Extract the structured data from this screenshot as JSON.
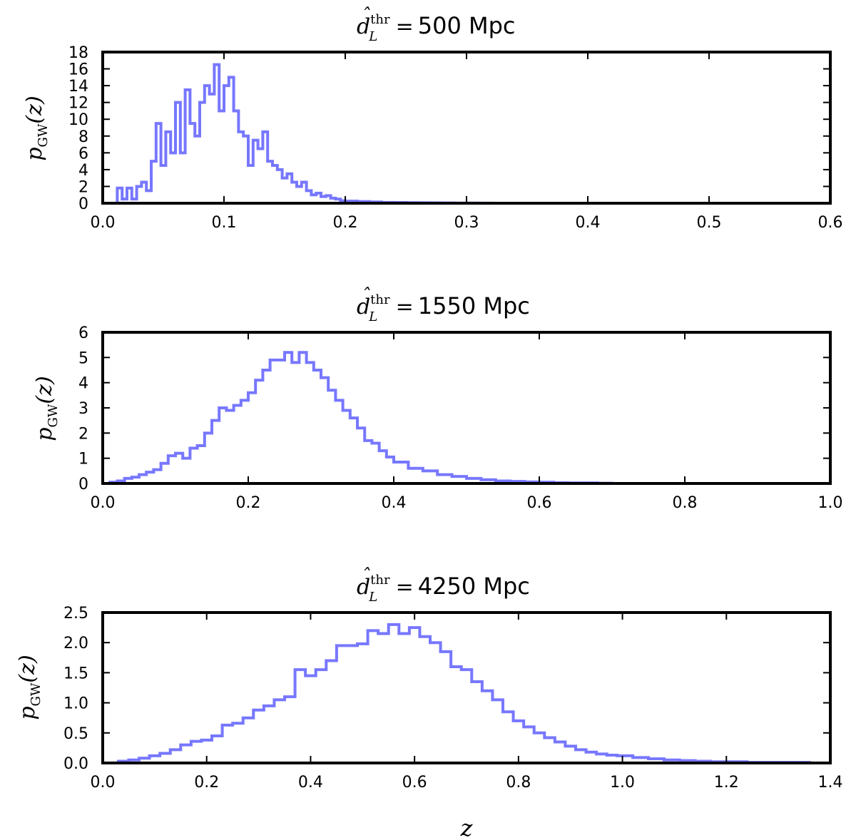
{
  "figure": {
    "xlabel": "z",
    "ylabel_symbol": "p",
    "ylabel_subscript": "GW",
    "ylabel_argument": "(z)",
    "title_symbol": "d",
    "title_subscript": "L",
    "title_superscript": "thr",
    "title_equals": "="
  },
  "chart_data": [
    {
      "type": "line",
      "style": "step histogram",
      "title": "500 Mpc",
      "xlabel": "",
      "ylabel": "p_GW(z)",
      "xlim": [
        0.0,
        0.6
      ],
      "ylim": [
        0,
        18
      ],
      "xticks": [
        0.0,
        0.1,
        0.2,
        0.3,
        0.4,
        0.5,
        0.6
      ],
      "xtick_labels": [
        "0.0",
        "0.1",
        "0.2",
        "0.3",
        "0.4",
        "0.5",
        "0.6"
      ],
      "yticks": [
        0,
        2,
        4,
        6,
        8,
        10,
        12,
        14,
        16,
        18
      ],
      "ytick_labels": [
        "0",
        "2",
        "4",
        "6",
        "8",
        "10",
        "12",
        "14",
        "16",
        "18"
      ],
      "color": "#7777ff",
      "series": [
        {
          "name": "d_L^thr = 500 Mpc",
          "x": [
            0.012,
            0.016,
            0.02,
            0.024,
            0.028,
            0.032,
            0.036,
            0.04,
            0.044,
            0.048,
            0.052,
            0.056,
            0.06,
            0.064,
            0.068,
            0.072,
            0.076,
            0.08,
            0.084,
            0.088,
            0.092,
            0.096,
            0.1,
            0.104,
            0.108,
            0.112,
            0.116,
            0.12,
            0.124,
            0.128,
            0.132,
            0.136,
            0.14,
            0.144,
            0.148,
            0.152,
            0.156,
            0.16,
            0.164,
            0.168,
            0.172,
            0.176,
            0.18,
            0.184,
            0.188,
            0.192,
            0.196,
            0.2,
            0.21,
            0.22,
            0.23,
            0.24,
            0.25,
            0.26,
            0.27,
            0.28,
            0.29,
            0.3,
            0.31,
            0.32
          ],
          "values": [
            1.8,
            0.5,
            1.8,
            0.5,
            2.0,
            2.5,
            1.5,
            5.0,
            9.5,
            4.5,
            8.5,
            6.0,
            12.0,
            6.0,
            13.5,
            9.5,
            8.0,
            12.0,
            14.0,
            13.0,
            16.5,
            11.0,
            14.0,
            15.0,
            11.0,
            8.5,
            8.0,
            4.5,
            7.5,
            6.5,
            8.5,
            5.0,
            4.5,
            4.0,
            3.0,
            3.5,
            2.5,
            2.0,
            2.5,
            1.5,
            1.0,
            1.2,
            0.8,
            0.9,
            0.6,
            0.5,
            0.3,
            0.25,
            0.2,
            0.15,
            0.1,
            0.08,
            0.06,
            0.05,
            0.04,
            0.03,
            0.02,
            0.02,
            0.01,
            0.0
          ]
        }
      ]
    },
    {
      "type": "line",
      "style": "step histogram",
      "title": "1550 Mpc",
      "xlabel": "",
      "ylabel": "p_GW(z)",
      "xlim": [
        0.0,
        1.0
      ],
      "ylim": [
        0,
        6
      ],
      "xticks": [
        0.0,
        0.2,
        0.4,
        0.6,
        0.8,
        1.0
      ],
      "xtick_labels": [
        "0.0",
        "0.2",
        "0.4",
        "0.6",
        "0.8",
        "1.0"
      ],
      "yticks": [
        0,
        1,
        2,
        3,
        4,
        5,
        6
      ],
      "ytick_labels": [
        "0",
        "1",
        "2",
        "3",
        "4",
        "5",
        "6"
      ],
      "color": "#7777ff",
      "series": [
        {
          "name": "d_L^thr = 1550 Mpc",
          "x": [
            0.01,
            0.02,
            0.03,
            0.04,
            0.05,
            0.06,
            0.07,
            0.08,
            0.09,
            0.1,
            0.11,
            0.12,
            0.13,
            0.14,
            0.15,
            0.16,
            0.17,
            0.18,
            0.19,
            0.2,
            0.21,
            0.22,
            0.23,
            0.24,
            0.25,
            0.26,
            0.27,
            0.28,
            0.29,
            0.3,
            0.31,
            0.32,
            0.33,
            0.34,
            0.35,
            0.36,
            0.37,
            0.38,
            0.39,
            0.4,
            0.42,
            0.44,
            0.46,
            0.48,
            0.5,
            0.52,
            0.54,
            0.56,
            0.58,
            0.6,
            0.62,
            0.64,
            0.66,
            0.68,
            0.7
          ],
          "values": [
            0.05,
            0.1,
            0.2,
            0.25,
            0.35,
            0.45,
            0.55,
            0.8,
            1.1,
            1.2,
            1.0,
            1.4,
            1.5,
            2.0,
            2.5,
            3.0,
            2.9,
            3.1,
            3.3,
            3.6,
            4.1,
            4.5,
            4.9,
            4.9,
            5.2,
            4.8,
            5.2,
            4.8,
            4.5,
            4.2,
            3.7,
            3.3,
            2.9,
            2.6,
            2.2,
            1.7,
            1.6,
            1.3,
            1.05,
            0.85,
            0.6,
            0.5,
            0.35,
            0.28,
            0.2,
            0.15,
            0.1,
            0.08,
            0.06,
            0.05,
            0.03,
            0.02,
            0.02,
            0.01,
            0.0
          ]
        }
      ]
    },
    {
      "type": "line",
      "style": "step histogram",
      "title": "4250 Mpc",
      "xlabel": "z",
      "ylabel": "p_GW(z)",
      "xlim": [
        0.0,
        1.4
      ],
      "ylim": [
        0.0,
        2.5
      ],
      "xticks": [
        0.0,
        0.2,
        0.4,
        0.6,
        0.8,
        1.0,
        1.2,
        1.4
      ],
      "xtick_labels": [
        "0.0",
        "0.2",
        "0.4",
        "0.6",
        "0.8",
        "1.0",
        "1.2",
        "1.4"
      ],
      "yticks": [
        0.0,
        0.5,
        1.0,
        1.5,
        2.0,
        2.5
      ],
      "ytick_labels": [
        "0.0",
        "0.5",
        "1.0",
        "1.5",
        "2.0",
        "2.5"
      ],
      "color": "#7777ff",
      "series": [
        {
          "name": "d_L^thr = 4250 Mpc",
          "x": [
            0.03,
            0.05,
            0.07,
            0.09,
            0.11,
            0.13,
            0.15,
            0.17,
            0.19,
            0.21,
            0.23,
            0.25,
            0.27,
            0.29,
            0.31,
            0.33,
            0.35,
            0.37,
            0.39,
            0.41,
            0.43,
            0.45,
            0.47,
            0.49,
            0.51,
            0.53,
            0.55,
            0.57,
            0.59,
            0.61,
            0.63,
            0.65,
            0.67,
            0.69,
            0.71,
            0.73,
            0.75,
            0.77,
            0.79,
            0.81,
            0.83,
            0.85,
            0.87,
            0.89,
            0.91,
            0.93,
            0.95,
            0.97,
            0.99,
            1.02,
            1.05,
            1.08,
            1.11,
            1.14,
            1.17,
            1.2,
            1.24,
            1.28,
            1.32,
            1.36,
            1.4
          ],
          "values": [
            0.03,
            0.05,
            0.08,
            0.12,
            0.16,
            0.22,
            0.3,
            0.36,
            0.38,
            0.45,
            0.63,
            0.66,
            0.75,
            0.88,
            0.95,
            1.05,
            1.1,
            1.55,
            1.45,
            1.55,
            1.7,
            1.95,
            1.95,
            1.98,
            2.2,
            2.15,
            2.3,
            2.15,
            2.25,
            2.1,
            2.0,
            1.85,
            1.6,
            1.55,
            1.35,
            1.2,
            1.05,
            0.85,
            0.7,
            0.6,
            0.5,
            0.42,
            0.35,
            0.28,
            0.22,
            0.18,
            0.15,
            0.13,
            0.12,
            0.09,
            0.07,
            0.05,
            0.04,
            0.03,
            0.02,
            0.02,
            0.01,
            0.01,
            0.01,
            0.0,
            0.0
          ]
        }
      ]
    }
  ]
}
